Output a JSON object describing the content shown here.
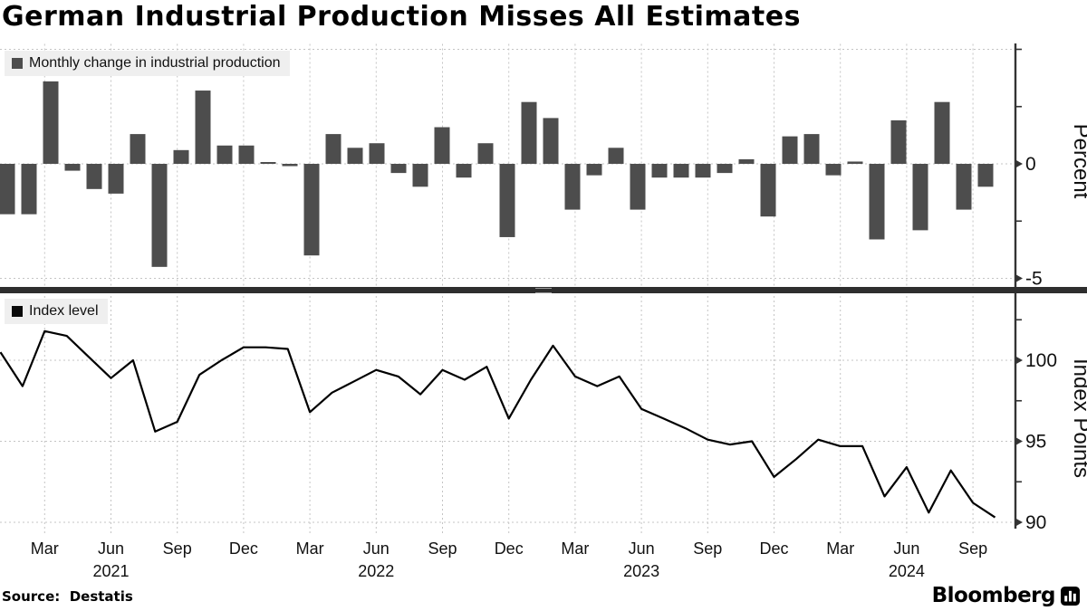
{
  "title": "German Industrial Production Misses All Estimates",
  "source_label": "Source:  Destatis",
  "brand": "Bloomberg",
  "colors": {
    "bar": "#4d4d4d",
    "line": "#000000",
    "grid": "#c4c4c4",
    "spine": "#333333",
    "legend_bg": "#efefef",
    "separator": "#2e2e2e",
    "legend_swatch_top": "#4d4d4d",
    "legend_swatch_bottom": "#0a0a0a"
  },
  "top_panel": {
    "legend": "Monthly change in industrial production",
    "axis_title": "Percent",
    "yticks": [
      {
        "v": 5,
        "label": "",
        "grid": true
      },
      {
        "v": 2.5,
        "label": "",
        "grid": false
      },
      {
        "v": 0,
        "label": "0",
        "grid": true
      },
      {
        "v": -2.5,
        "label": "",
        "grid": false
      },
      {
        "v": -5,
        "label": "-5",
        "grid": true
      }
    ]
  },
  "bottom_panel": {
    "legend": "Index level",
    "axis_title": "Index Points",
    "yticks": [
      {
        "v": 102.5,
        "label": "",
        "grid": false
      },
      {
        "v": 100,
        "label": "100",
        "grid": true
      },
      {
        "v": 97.5,
        "label": "",
        "grid": false
      },
      {
        "v": 95,
        "label": "95",
        "grid": true
      },
      {
        "v": 92.5,
        "label": "",
        "grid": false
      },
      {
        "v": 90,
        "label": "90",
        "grid": true
      }
    ]
  },
  "x_axis": {
    "quarter_ticks": [
      {
        "i": 2,
        "label": "Mar"
      },
      {
        "i": 5,
        "label": "Jun"
      },
      {
        "i": 8,
        "label": "Sep"
      },
      {
        "i": 11,
        "label": "Dec"
      },
      {
        "i": 14,
        "label": "Mar"
      },
      {
        "i": 17,
        "label": "Jun"
      },
      {
        "i": 20,
        "label": "Sep"
      },
      {
        "i": 23,
        "label": "Dec"
      },
      {
        "i": 26,
        "label": "Mar"
      },
      {
        "i": 29,
        "label": "Jun"
      },
      {
        "i": 32,
        "label": "Sep"
      },
      {
        "i": 35,
        "label": "Dec"
      },
      {
        "i": 38,
        "label": "Mar"
      },
      {
        "i": 41,
        "label": "Jun"
      },
      {
        "i": 44,
        "label": "Sep"
      }
    ],
    "year_labels": [
      {
        "i": 5,
        "label": "2021"
      },
      {
        "i": 17,
        "label": "2022"
      },
      {
        "i": 29,
        "label": "2023"
      },
      {
        "i": 41,
        "label": "2024"
      }
    ]
  },
  "months": [
    "2021-01",
    "2021-02",
    "2021-03",
    "2021-04",
    "2021-05",
    "2021-06",
    "2021-07",
    "2021-08",
    "2021-09",
    "2021-10",
    "2021-11",
    "2021-12",
    "2022-01",
    "2022-02",
    "2022-03",
    "2022-04",
    "2022-05",
    "2022-06",
    "2022-07",
    "2022-08",
    "2022-09",
    "2022-10",
    "2022-11",
    "2022-12",
    "2023-01",
    "2023-02",
    "2023-03",
    "2023-04",
    "2023-05",
    "2023-06",
    "2023-07",
    "2023-08",
    "2023-09",
    "2023-10",
    "2023-11",
    "2023-12",
    "2024-01",
    "2024-02",
    "2024-03",
    "2024-04",
    "2024-05",
    "2024-06",
    "2024-07",
    "2024-08",
    "2024-09",
    "2024-10"
  ],
  "chart_data": [
    {
      "type": "bar",
      "panel": "top",
      "name": "Monthly change in industrial production",
      "ylabel": "Percent",
      "ylim": [
        -5.5,
        5.5
      ],
      "yticks_labeled": [
        0,
        -5
      ],
      "grid": true,
      "values": [
        -2.2,
        -2.2,
        3.6,
        -0.3,
        -1.1,
        -1.3,
        1.3,
        -4.5,
        0.6,
        3.2,
        0.8,
        0.8,
        0.0,
        -0.1,
        -4.0,
        1.3,
        0.7,
        0.9,
        -0.4,
        -1.0,
        1.6,
        -0.6,
        0.9,
        -3.2,
        2.7,
        2.0,
        -2.0,
        -0.5,
        0.7,
        -2.0,
        -0.6,
        -0.6,
        -0.6,
        -0.4,
        0.2,
        -2.3,
        1.2,
        1.3,
        -0.5,
        0.1,
        -3.3,
        1.9,
        -2.9,
        2.7,
        -2.0,
        -1.0
      ]
    },
    {
      "type": "line",
      "panel": "bottom",
      "name": "Index level",
      "ylabel": "Index Points",
      "ylim": [
        89,
        103
      ],
      "yticks_labeled": [
        100,
        95,
        90
      ],
      "grid": true,
      "values": [
        100.5,
        98.4,
        101.8,
        101.5,
        100.2,
        98.9,
        100.0,
        95.6,
        96.2,
        99.1,
        100.0,
        100.8,
        100.8,
        100.7,
        96.8,
        98.0,
        98.7,
        99.4,
        99.0,
        97.9,
        99.4,
        98.8,
        99.6,
        96.4,
        98.8,
        100.9,
        99.0,
        98.4,
        99.0,
        97.0,
        96.4,
        95.8,
        95.1,
        94.8,
        95.0,
        92.8,
        93.9,
        95.1,
        94.7,
        94.7,
        91.6,
        93.4,
        90.6,
        93.2,
        91.2,
        90.3
      ]
    }
  ]
}
